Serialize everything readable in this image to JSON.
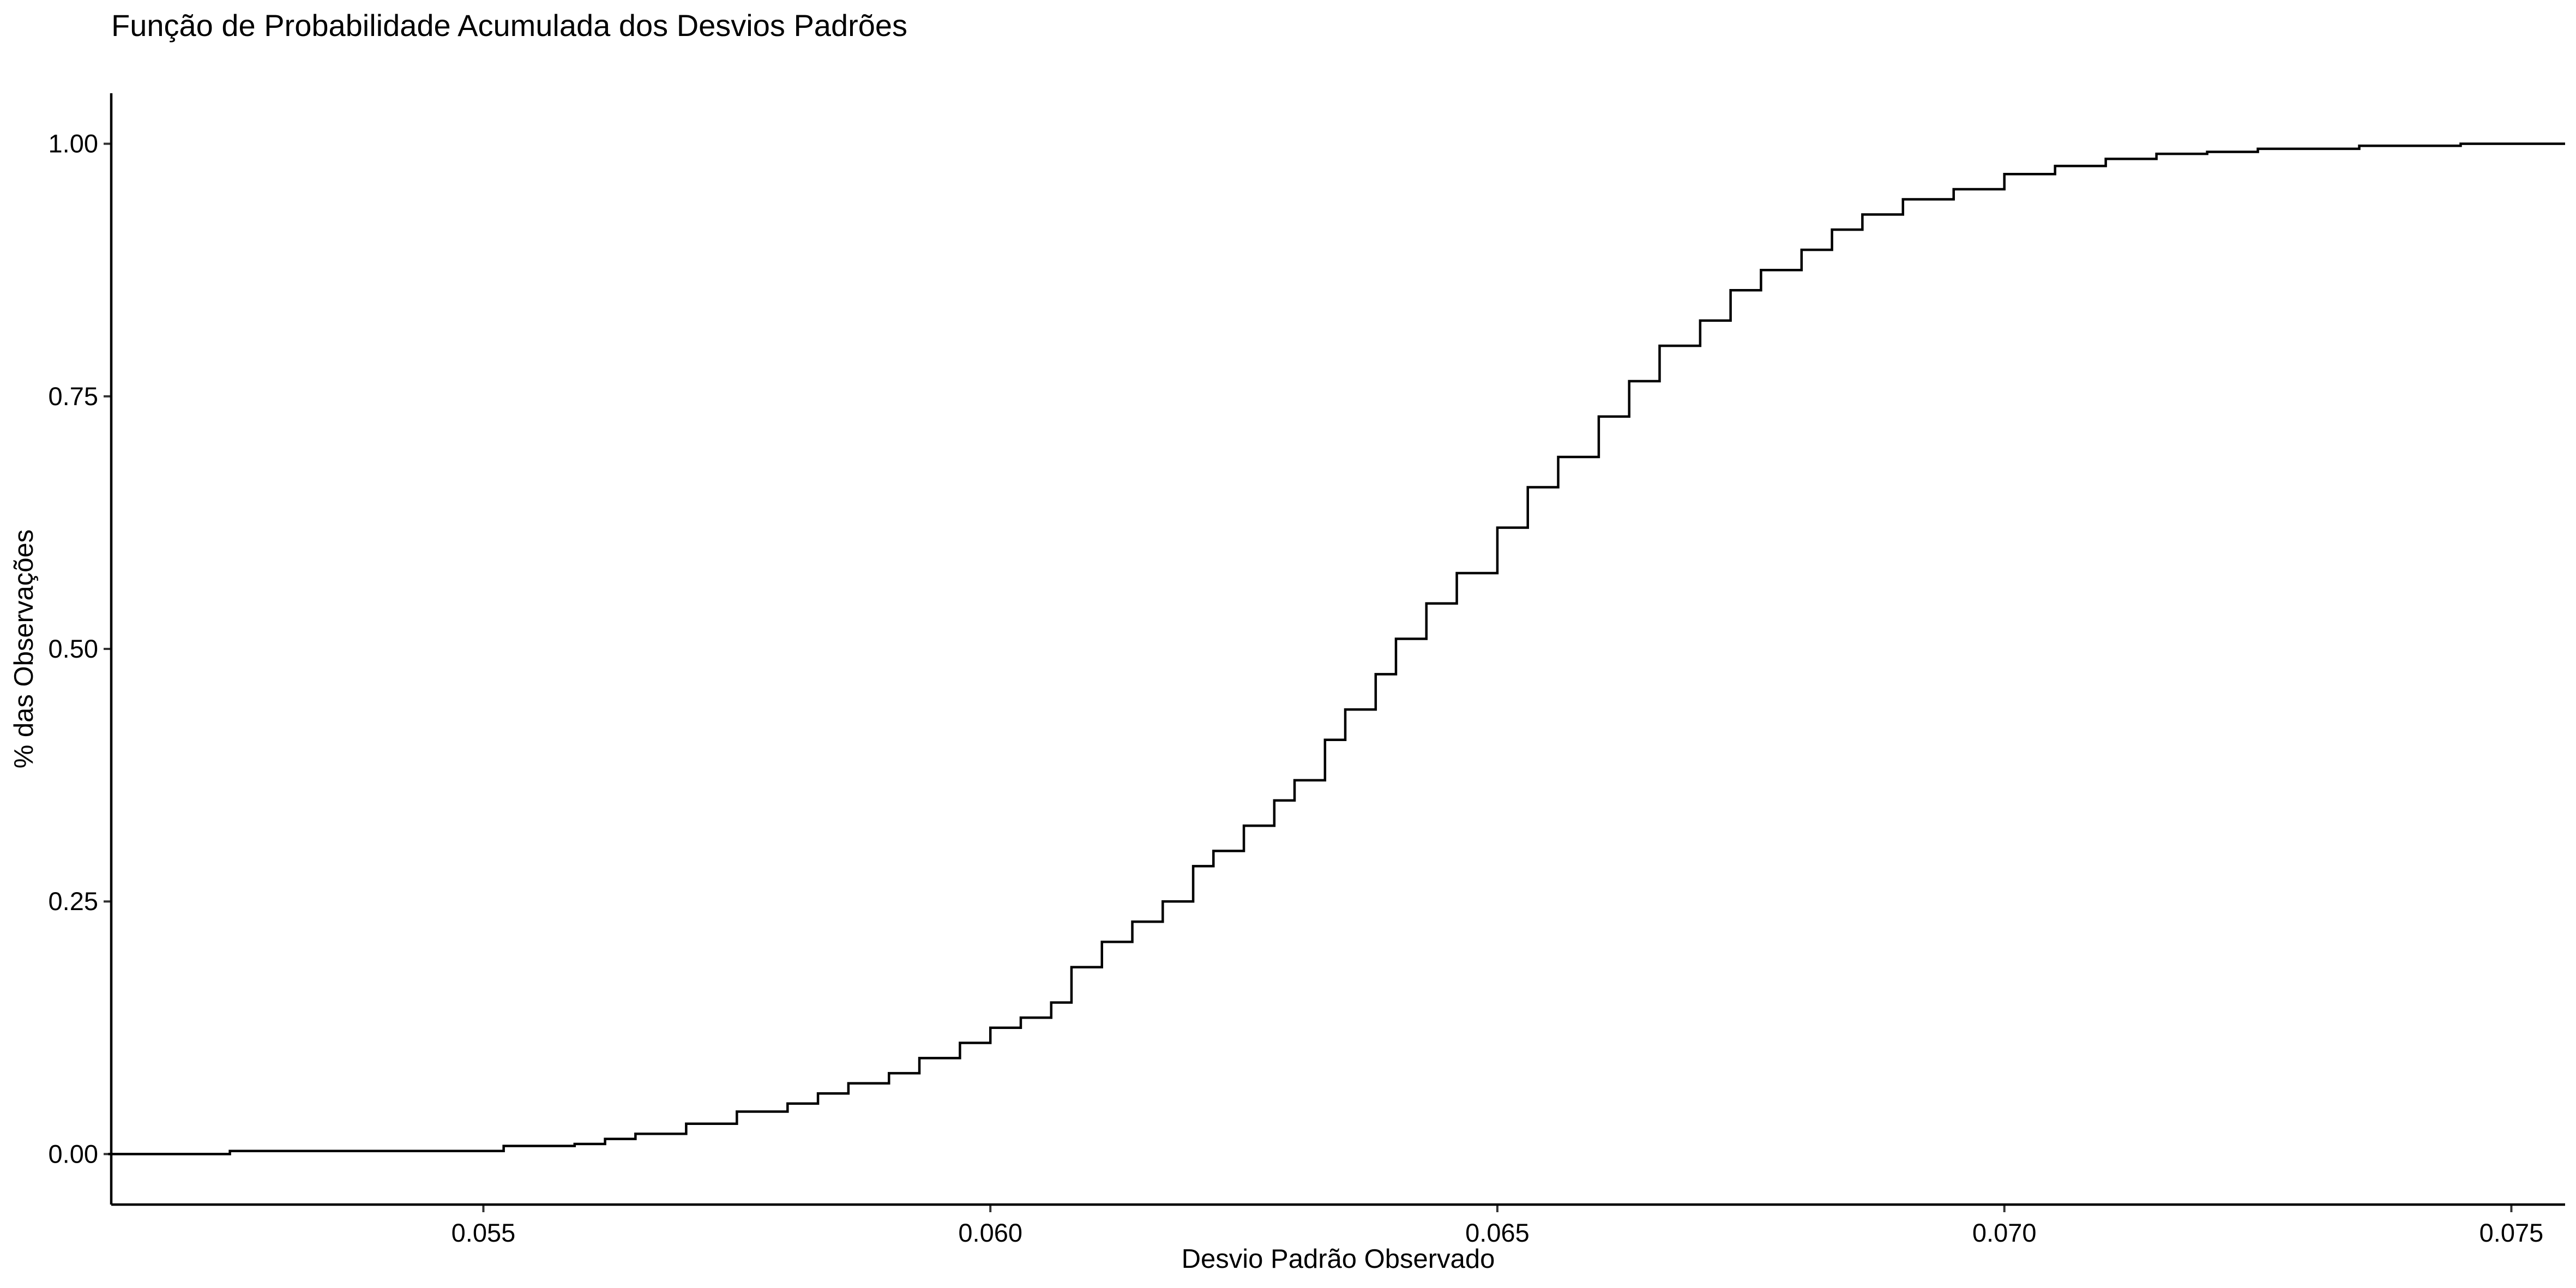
{
  "chart_data": {
    "type": "line",
    "title": "Função de Probabilidade Acumulada dos Desvios Padrões",
    "xlabel": "Desvio Padrão Observado",
    "ylabel": "% das Observações",
    "xlim": [
      0.05133,
      0.07553
    ],
    "ylim": [
      -0.05,
      1.05
    ],
    "x_ticks": [
      {
        "value": 0.055,
        "label": "0.055"
      },
      {
        "value": 0.06,
        "label": "0.060"
      },
      {
        "value": 0.065,
        "label": "0.065"
      },
      {
        "value": 0.07,
        "label": "0.070"
      },
      {
        "value": 0.075,
        "label": "0.075"
      }
    ],
    "y_ticks": [
      {
        "value": 0.0,
        "label": "0.00"
      },
      {
        "value": 0.25,
        "label": "0.25"
      },
      {
        "value": 0.5,
        "label": "0.50"
      },
      {
        "value": 0.75,
        "label": "0.75"
      },
      {
        "value": 1.0,
        "label": "1.00"
      }
    ],
    "grid": false,
    "line_color": "#000000",
    "series": [
      {
        "step": true,
        "x": [
          0.0513,
          0.0525,
          0.055,
          0.0552,
          0.0559,
          0.0562,
          0.0565,
          0.057,
          0.0575,
          0.058,
          0.0583,
          0.0586,
          0.059,
          0.0593,
          0.0597,
          0.06,
          0.0603,
          0.0606,
          0.0608,
          0.0611,
          0.0614,
          0.0617,
          0.062,
          0.0622,
          0.0625,
          0.0628,
          0.063,
          0.0633,
          0.0635,
          0.0638,
          0.064,
          0.0643,
          0.0646,
          0.065,
          0.0653,
          0.0656,
          0.066,
          0.0663,
          0.0666,
          0.067,
          0.0673,
          0.0676,
          0.068,
          0.0683,
          0.0686,
          0.069,
          0.0695,
          0.07,
          0.0705,
          0.071,
          0.0715,
          0.072,
          0.0725,
          0.0735,
          0.0745,
          0.07553
        ],
        "y": [
          0.0,
          0.003,
          0.003,
          0.008,
          0.01,
          0.015,
          0.02,
          0.03,
          0.042,
          0.05,
          0.06,
          0.07,
          0.08,
          0.095,
          0.11,
          0.125,
          0.135,
          0.15,
          0.185,
          0.21,
          0.23,
          0.25,
          0.285,
          0.3,
          0.325,
          0.35,
          0.37,
          0.41,
          0.44,
          0.475,
          0.51,
          0.545,
          0.575,
          0.62,
          0.66,
          0.69,
          0.73,
          0.765,
          0.8,
          0.825,
          0.855,
          0.875,
          0.895,
          0.915,
          0.93,
          0.945,
          0.955,
          0.97,
          0.978,
          0.985,
          0.99,
          0.992,
          0.995,
          0.998,
          1.0,
          1.0
        ]
      }
    ]
  }
}
